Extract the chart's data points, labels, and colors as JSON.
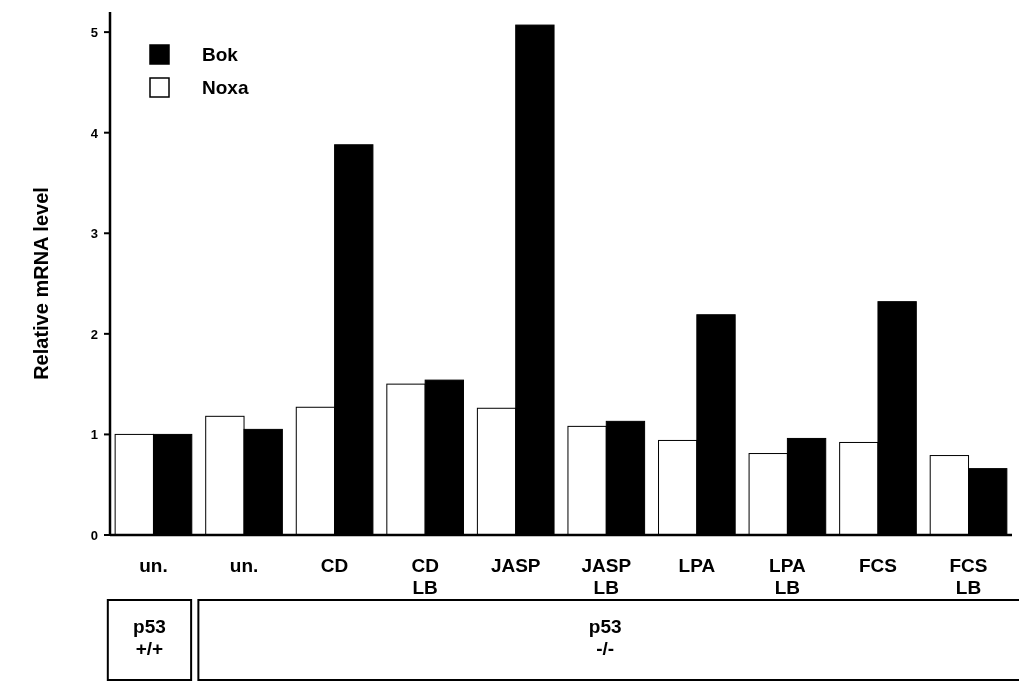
{
  "chart_data": {
    "type": "bar",
    "ylabel": "Relative mRNA level",
    "categories": [
      "un.",
      "un.",
      "CD",
      "CD\nLB",
      "JASP",
      "JASP\nLB",
      "LPA",
      "LPA\nLB",
      "FCS",
      "FCS\nLB"
    ],
    "series": [
      {
        "name": "Noxa",
        "color": "#ffffff",
        "values": [
          1.0,
          1.18,
          1.27,
          1.5,
          1.26,
          1.08,
          0.94,
          0.81,
          0.92,
          0.79
        ]
      },
      {
        "name": "Bok",
        "color": "#000000",
        "values": [
          1.0,
          1.05,
          3.88,
          1.54,
          5.07,
          1.13,
          2.19,
          0.96,
          2.32,
          0.66
        ]
      }
    ],
    "ylim": [
      0,
      5.2
    ],
    "yticks": [
      0,
      1,
      2,
      3,
      4,
      5
    ],
    "legend": "top left",
    "annotations": [
      "p53\n+/+",
      "p53\n-/-"
    ]
  }
}
